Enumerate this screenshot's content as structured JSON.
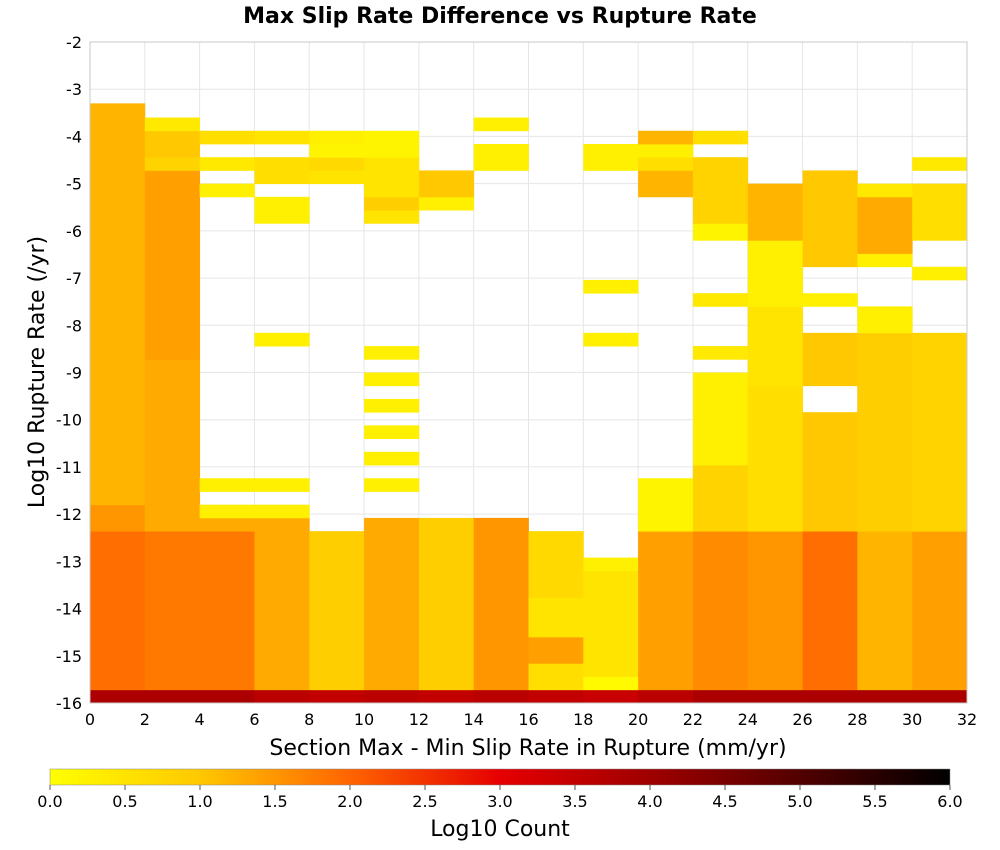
{
  "chart_data": {
    "type": "heatmap",
    "title": "Max Slip Rate Difference vs Rupture Rate",
    "xlabel": "Section Max - Min Slip Rate in Rupture (mm/yr)",
    "ylabel": "Log10 Rupture Rate (/yr)",
    "xlim": [
      0,
      32
    ],
    "ylim": [
      -16,
      -2
    ],
    "x_ticks": [
      "0",
      "2",
      "4",
      "6",
      "8",
      "10",
      "12",
      "14",
      "16",
      "18",
      "20",
      "22",
      "24",
      "26",
      "28",
      "30",
      "32"
    ],
    "y_ticks": [
      "-2",
      "-3",
      "-4",
      "-5",
      "-6",
      "-7",
      "-8",
      "-9",
      "-10",
      "-11",
      "-12",
      "-13",
      "-14",
      "-15",
      "-16"
    ],
    "x_bin_width": 2,
    "y_bin_height": 0.28,
    "grid": true,
    "colorbar": {
      "label": "Log10 Count",
      "range": [
        0,
        6
      ],
      "ticks": [
        "0.0",
        "0.5",
        "1.0",
        "1.5",
        "2.0",
        "2.5",
        "3.0",
        "3.5",
        "4.0",
        "4.5",
        "5.0",
        "5.5",
        "6.0"
      ],
      "stops": [
        {
          "value": 0,
          "color": "#ffff00"
        },
        {
          "value": 1,
          "color": "#ffc800"
        },
        {
          "value": 2,
          "color": "#ff6400"
        },
        {
          "value": 3,
          "color": "#e60000"
        },
        {
          "value": 4.5,
          "color": "#7a0000"
        },
        {
          "value": 6,
          "color": "#000000"
        }
      ]
    },
    "columns": [
      {
        "x": 0,
        "cells": [
          [
            -16,
            -15.72,
            3.8
          ],
          [
            -15.72,
            -12.36,
            1.9
          ],
          [
            -12.36,
            -11.8,
            1.5
          ],
          [
            -11.8,
            -3.3,
            1.2
          ]
        ]
      },
      {
        "x": 2,
        "cells": [
          [
            -16,
            -15.72,
            3.8
          ],
          [
            -15.72,
            -12.36,
            1.8
          ],
          [
            -12.36,
            -8.72,
            1.3
          ],
          [
            -8.72,
            -4.72,
            1.4
          ],
          [
            -4.72,
            -4.44,
            0.8
          ],
          [
            -4.44,
            -3.88,
            1.0
          ],
          [
            -3.88,
            -3.6,
            0.4
          ]
        ]
      },
      {
        "x": 4,
        "cells": [
          [
            -16,
            -15.72,
            3.8
          ],
          [
            -15.72,
            -12.36,
            1.8
          ],
          [
            -12.36,
            -12.08,
            1.3
          ],
          [
            -12.08,
            -11.8,
            0.3
          ],
          [
            -11.52,
            -11.24,
            0.3
          ],
          [
            -5.28,
            -5.0,
            0.3
          ],
          [
            -4.72,
            -4.44,
            0.4
          ],
          [
            -4.16,
            -3.88,
            0.6
          ]
        ]
      },
      {
        "x": 6,
        "cells": [
          [
            -16,
            -15.72,
            3.6
          ],
          [
            -15.72,
            -12.08,
            1.3
          ],
          [
            -12.08,
            -11.8,
            0.3
          ],
          [
            -11.52,
            -11.24,
            0.3
          ],
          [
            -8.44,
            -8.16,
            0.3
          ],
          [
            -5.84,
            -5.28,
            0.3
          ],
          [
            -5.0,
            -4.44,
            0.6
          ],
          [
            -4.16,
            -3.88,
            0.5
          ]
        ]
      },
      {
        "x": 8,
        "cells": [
          [
            -16,
            -15.72,
            3.5
          ],
          [
            -15.72,
            -12.36,
            0.9
          ],
          [
            -5.0,
            -4.72,
            0.5
          ],
          [
            -4.72,
            -4.44,
            0.7
          ],
          [
            -4.44,
            -4.16,
            0.2
          ],
          [
            -4.16,
            -3.88,
            0.3
          ]
        ]
      },
      {
        "x": 10,
        "cells": [
          [
            -16,
            -15.72,
            3.6
          ],
          [
            -15.72,
            -12.08,
            1.3
          ],
          [
            -11.52,
            -11.24,
            0.3
          ],
          [
            -10.96,
            -10.68,
            0.3
          ],
          [
            -10.4,
            -10.12,
            0.3
          ],
          [
            -9.84,
            -9.56,
            0.3
          ],
          [
            -9.28,
            -9.0,
            0.3
          ],
          [
            -8.72,
            -8.44,
            0.3
          ],
          [
            -5.84,
            -5.56,
            0.5
          ],
          [
            -5.56,
            -5.28,
            0.9
          ],
          [
            -5.28,
            -4.44,
            0.5
          ],
          [
            -4.44,
            -3.88,
            0.2
          ]
        ]
      },
      {
        "x": 12,
        "cells": [
          [
            -16,
            -15.72,
            3.5
          ],
          [
            -15.72,
            -12.08,
            0.9
          ],
          [
            -5.56,
            -5.28,
            0.3
          ],
          [
            -5.28,
            -4.72,
            1.0
          ]
        ]
      },
      {
        "x": 14,
        "cells": [
          [
            -16,
            -15.72,
            3.6
          ],
          [
            -15.72,
            -12.08,
            1.5
          ],
          [
            -4.72,
            -4.16,
            0.3
          ],
          [
            -3.88,
            -3.6,
            0.3
          ]
        ]
      },
      {
        "x": 16,
        "cells": [
          [
            -16,
            -15.72,
            3.5
          ],
          [
            -15.72,
            -15.16,
            0.6
          ],
          [
            -15.16,
            -14.6,
            1.4
          ],
          [
            -14.6,
            -13.76,
            0.5
          ],
          [
            -13.76,
            -12.36,
            0.7
          ]
        ]
      },
      {
        "x": 18,
        "cells": [
          [
            -16,
            -15.72,
            3.4
          ],
          [
            -15.72,
            -15.44,
            0.1
          ],
          [
            -15.44,
            -13.2,
            0.5
          ],
          [
            -13.2,
            -12.92,
            0.3
          ],
          [
            -8.44,
            -8.16,
            0.3
          ],
          [
            -7.32,
            -7.04,
            0.3
          ],
          [
            -4.72,
            -4.44,
            0.3
          ],
          [
            -4.44,
            -4.16,
            0.3
          ]
        ]
      },
      {
        "x": 20,
        "cells": [
          [
            -16,
            -15.72,
            3.6
          ],
          [
            -15.72,
            -12.36,
            1.4
          ],
          [
            -12.36,
            -11.24,
            0.2
          ],
          [
            -5.28,
            -4.72,
            1.2
          ],
          [
            -4.72,
            -4.44,
            0.6
          ],
          [
            -4.44,
            -4.16,
            0.3
          ],
          [
            -4.16,
            -3.88,
            1.2
          ]
        ]
      },
      {
        "x": 22,
        "cells": [
          [
            -16,
            -15.72,
            3.8
          ],
          [
            -15.72,
            -12.36,
            1.6
          ],
          [
            -12.36,
            -10.96,
            0.8
          ],
          [
            -10.96,
            -9.0,
            0.3
          ],
          [
            -8.72,
            -8.44,
            0.4
          ],
          [
            -7.6,
            -7.32,
            0.4
          ],
          [
            -6.2,
            -5.84,
            0.2
          ],
          [
            -5.84,
            -4.44,
            0.8
          ],
          [
            -4.16,
            -3.88,
            0.6
          ]
        ]
      },
      {
        "x": 24,
        "cells": [
          [
            -16,
            -15.72,
            3.8
          ],
          [
            -15.72,
            -12.36,
            1.5
          ],
          [
            -12.36,
            -11.24,
            0.6
          ],
          [
            -11.24,
            -9.28,
            0.6
          ],
          [
            -9.28,
            -7.6,
            0.5
          ],
          [
            -7.6,
            -6.2,
            0.3
          ],
          [
            -6.2,
            -5.0,
            1.2
          ]
        ]
      },
      {
        "x": 26,
        "cells": [
          [
            -16,
            -15.72,
            3.8
          ],
          [
            -15.72,
            -12.36,
            1.9
          ],
          [
            -12.36,
            -9.84,
            1.0
          ],
          [
            -9.28,
            -8.16,
            1.0
          ],
          [
            -7.6,
            -7.32,
            0.3
          ],
          [
            -6.76,
            -4.72,
            1.0
          ]
        ]
      },
      {
        "x": 28,
        "cells": [
          [
            -16,
            -15.72,
            3.8
          ],
          [
            -15.72,
            -12.36,
            1.2
          ],
          [
            -12.36,
            -8.16,
            0.9
          ],
          [
            -8.16,
            -7.6,
            0.3
          ],
          [
            -6.76,
            -6.48,
            0.3
          ],
          [
            -6.48,
            -5.28,
            1.3
          ],
          [
            -5.28,
            -5.0,
            0.4
          ]
        ]
      },
      {
        "x": 30,
        "cells": [
          [
            -16,
            -15.72,
            3.8
          ],
          [
            -15.72,
            -12.36,
            1.4
          ],
          [
            -12.36,
            -8.16,
            0.8
          ],
          [
            -7.04,
            -6.76,
            0.3
          ],
          [
            -6.2,
            -5.84,
            0.6
          ],
          [
            -5.84,
            -5.0,
            0.6
          ],
          [
            -4.72,
            -4.44,
            0.4
          ]
        ]
      }
    ]
  }
}
